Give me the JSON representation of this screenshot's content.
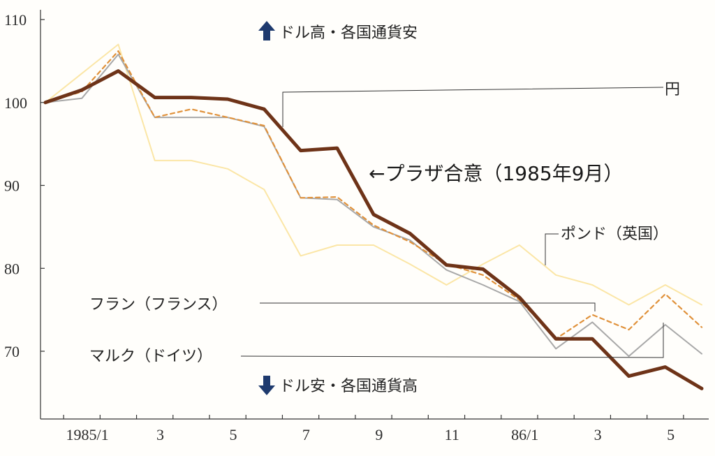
{
  "chart_data": {
    "type": "line",
    "title": "",
    "xlabel": "",
    "ylabel": "",
    "ylim": [
      62,
      110
    ],
    "yticks": [
      70,
      80,
      90,
      100,
      110
    ],
    "x_tick_labels": [
      {
        "i": 1,
        "label": "1985/1"
      },
      {
        "i": 3,
        "label": "3"
      },
      {
        "i": 5,
        "label": "5"
      },
      {
        "i": 7,
        "label": "7"
      },
      {
        "i": 9,
        "label": "9"
      },
      {
        "i": 11,
        "label": "11"
      },
      {
        "i": 13,
        "label": "86/1"
      },
      {
        "i": 15,
        "label": "3"
      },
      {
        "i": 17,
        "label": "5"
      }
    ],
    "series": [
      {
        "name": "ポンド（英国）",
        "color": "#fbe6a6",
        "dash": "",
        "width": 2,
        "values": [
          100,
          103.5,
          107,
          93,
          93,
          92,
          89.5,
          81.5,
          82.8,
          82.8,
          80.5,
          78,
          80.5,
          82.8,
          79.2,
          78,
          75.6,
          78,
          75.6
        ]
      },
      {
        "name": "マルク（ドイツ）",
        "color": "#a8a8a8",
        "dash": "",
        "width": 2,
        "values": [
          100,
          100.5,
          105.8,
          98.2,
          98.2,
          98.2,
          97.1,
          88.5,
          88.3,
          85,
          83.4,
          79.8,
          78,
          76,
          70.3,
          73.5,
          69.4,
          73.2,
          69.7
        ]
      },
      {
        "name": "フラン（フランス）",
        "color": "#e0913a",
        "dash": "6,5",
        "width": 2.2,
        "values": [
          100,
          101.3,
          106.2,
          98.2,
          99.2,
          98.2,
          97.2,
          88.5,
          88.6,
          85.2,
          83.2,
          80.5,
          79.2,
          76.2,
          71.5,
          74.4,
          72.6,
          76.9,
          72.9
        ]
      },
      {
        "name": "円",
        "color": "#6e3318",
        "dash": "",
        "width": 5,
        "values": [
          100,
          101.5,
          103.8,
          100.6,
          100.6,
          100.4,
          99.2,
          94.2,
          94.5,
          86.5,
          84.2,
          80.4,
          79.9,
          76.5,
          71.5,
          71.5,
          67,
          68.1,
          65.5
        ]
      }
    ],
    "annotations": {
      "dollar_high": "ドル高・各国通貨安",
      "dollar_low": "ドル安・各国通貨高",
      "plaza": "←プラザ合意（1985年9月）",
      "label_yen": "円",
      "label_pound": "ポンド（英国）",
      "label_franc": "フラン（フランス）",
      "label_mark": "マルク（ドイツ）"
    },
    "grid": false,
    "legend": "none"
  }
}
